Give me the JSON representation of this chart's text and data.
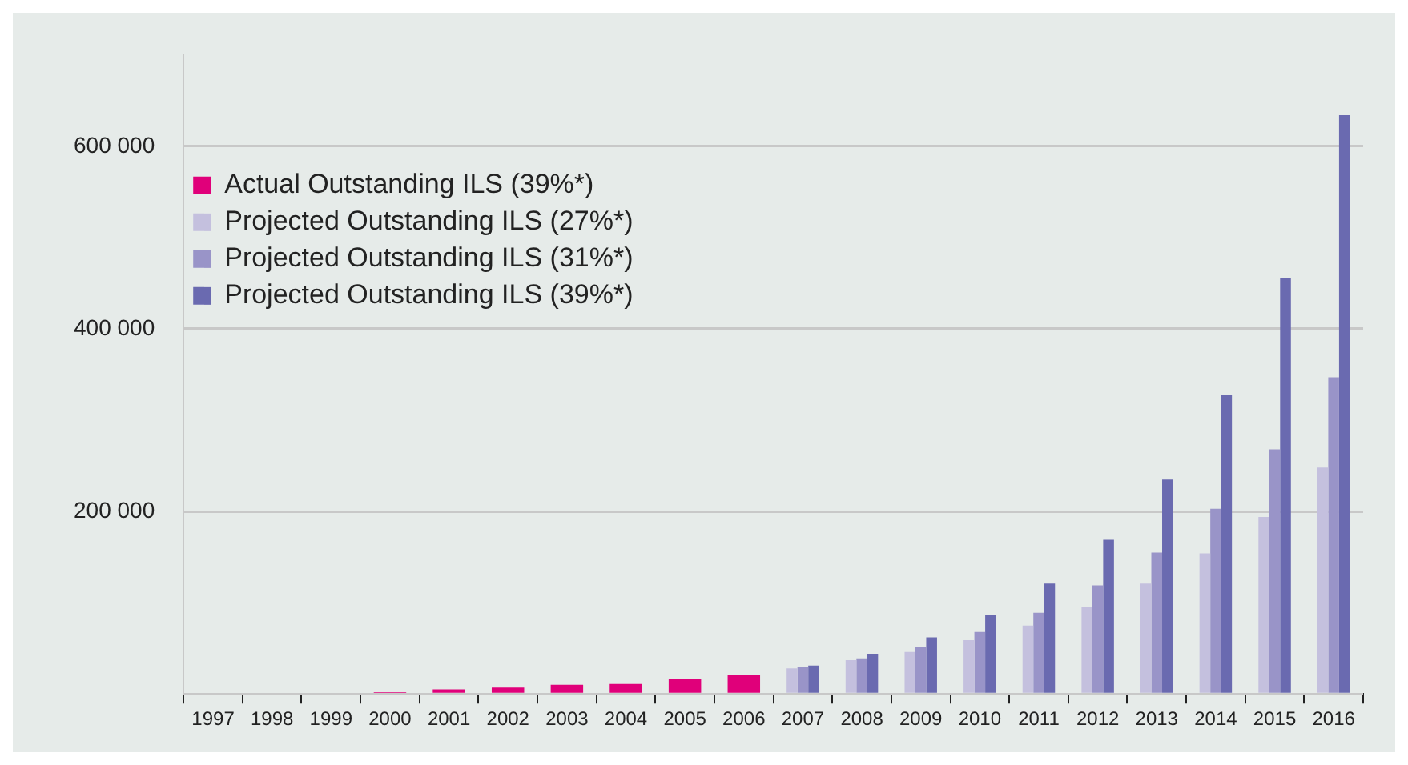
{
  "chart_data": {
    "type": "bar",
    "categories": [
      "1997",
      "1998",
      "1999",
      "2000",
      "2001",
      "2002",
      "2003",
      "2004",
      "2005",
      "2006",
      "2007",
      "2008",
      "2009",
      "2010",
      "2011",
      "2012",
      "2013",
      "2014",
      "2015",
      "2016"
    ],
    "series": [
      {
        "name": "Actual Outstanding ILS (39%*)",
        "color": "#e0007a",
        "values": [
          null,
          null,
          null,
          2000,
          5000,
          7000,
          10000,
          11000,
          16000,
          21000,
          null,
          null,
          null,
          null,
          null,
          null,
          null,
          null,
          null,
          null
        ]
      },
      {
        "name": "Projected Outstanding ILS (27%*)",
        "color": "#c4c0de",
        "values": [
          null,
          null,
          null,
          null,
          null,
          null,
          null,
          null,
          null,
          null,
          28000,
          37000,
          46000,
          59000,
          75000,
          95000,
          121000,
          154000,
          194000,
          248000
        ]
      },
      {
        "name": "Projected Outstanding ILS (31%*)",
        "color": "#9994c8",
        "values": [
          null,
          null,
          null,
          null,
          null,
          null,
          null,
          null,
          null,
          null,
          30000,
          39000,
          52000,
          68000,
          89000,
          119000,
          155000,
          203000,
          268000,
          347000
        ]
      },
      {
        "name": "Projected Outstanding ILS (39%*)",
        "color": "#6a6ab0",
        "values": [
          null,
          null,
          null,
          null,
          null,
          null,
          null,
          null,
          null,
          null,
          31000,
          44000,
          62000,
          86000,
          121000,
          169000,
          235000,
          328000,
          456000,
          634000
        ]
      }
    ],
    "ylim": [
      0,
      700000
    ],
    "yticks": [
      {
        "value": 0,
        "label": null
      },
      {
        "value": 200000,
        "label": "200 000"
      },
      {
        "value": 400000,
        "label": "400 000"
      },
      {
        "value": 600000,
        "label": "600 000"
      }
    ],
    "grid": "y",
    "legend": "top left"
  }
}
